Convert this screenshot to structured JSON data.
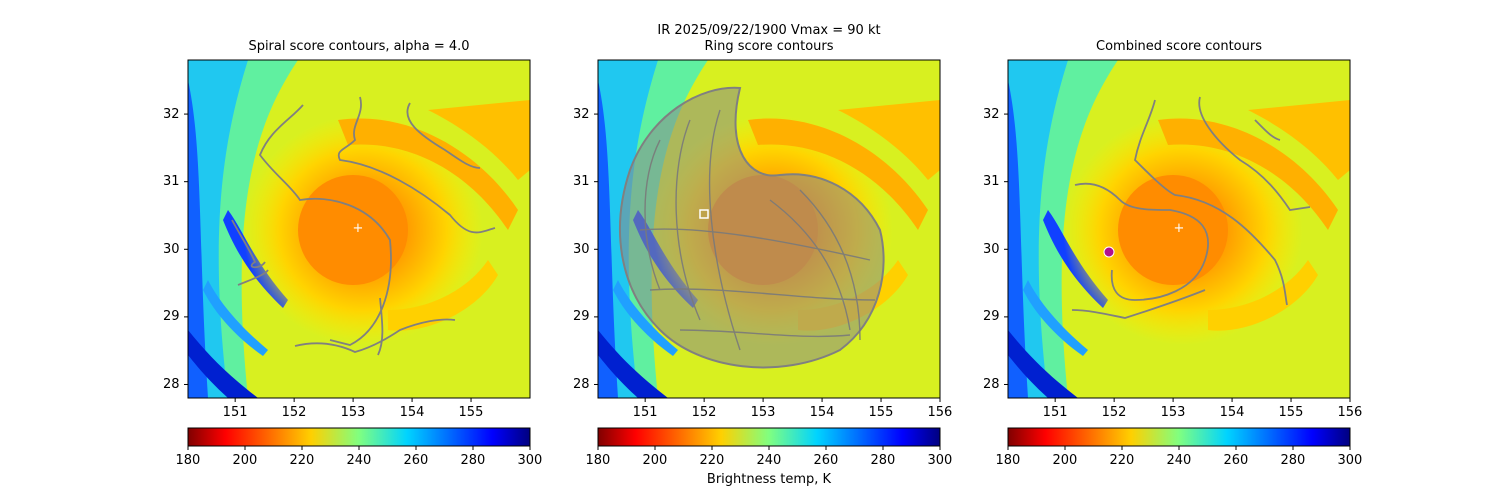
{
  "figure": {
    "suptitle_line1": "IR  2025/09/22/1900    Vmax = 90 kt",
    "colorbar_label": "Brightness temp, K"
  },
  "chart_data": [
    {
      "type": "heatmap",
      "title": "Spiral score contours, alpha =  4.0",
      "xlim": [
        150.2,
        156.0
      ],
      "ylim": [
        27.8,
        32.8
      ],
      "xticks": [
        "151",
        "152",
        "153",
        "154",
        "155"
      ],
      "yticks": [
        "28",
        "29",
        "30",
        "31",
        "32"
      ],
      "colorbar": {
        "range": [
          180,
          300
        ],
        "ticks": [
          "180",
          "200",
          "220",
          "240",
          "260",
          "280",
          "300"
        ],
        "colormap": "jet_r"
      },
      "center_marker": {
        "lon": 153.1,
        "lat": 30.32,
        "symbol": "+"
      },
      "overlay": "spiral contour lines (gray)"
    },
    {
      "type": "heatmap",
      "title": "Ring score contours",
      "xlim": [
        150.2,
        156.0
      ],
      "ylim": [
        27.8,
        32.8
      ],
      "xticks": [
        "151",
        "152",
        "153",
        "154",
        "155",
        "156"
      ],
      "yticks": [
        "28",
        "29",
        "30",
        "31",
        "32"
      ],
      "colorbar": {
        "range": [
          180,
          300
        ],
        "ticks": [
          "180",
          "200",
          "220",
          "240",
          "260",
          "280",
          "300"
        ],
        "colormap": "jet_r"
      },
      "center_marker": {
        "lon": 152.0,
        "lat": 30.53,
        "symbol": "square"
      },
      "overlay": "dense ring contours (gray)"
    },
    {
      "type": "heatmap",
      "title": "Combined score contours",
      "xlim": [
        150.2,
        156.0
      ],
      "ylim": [
        27.8,
        32.8
      ],
      "xticks": [
        "151",
        "152",
        "153",
        "154",
        "155",
        "156"
      ],
      "yticks": [
        "28",
        "29",
        "30",
        "31",
        "32"
      ],
      "colorbar": {
        "range": [
          180,
          300
        ],
        "ticks": [
          "180",
          "200",
          "220",
          "240",
          "260",
          "280",
          "300"
        ],
        "colormap": "jet_r"
      },
      "center_markers": [
        {
          "lon": 153.1,
          "lat": 30.32,
          "symbol": "+"
        },
        {
          "lon": 151.85,
          "lat": 29.98,
          "symbol": "circle"
        }
      ],
      "overlay": "combined contour lines (gray)"
    }
  ]
}
